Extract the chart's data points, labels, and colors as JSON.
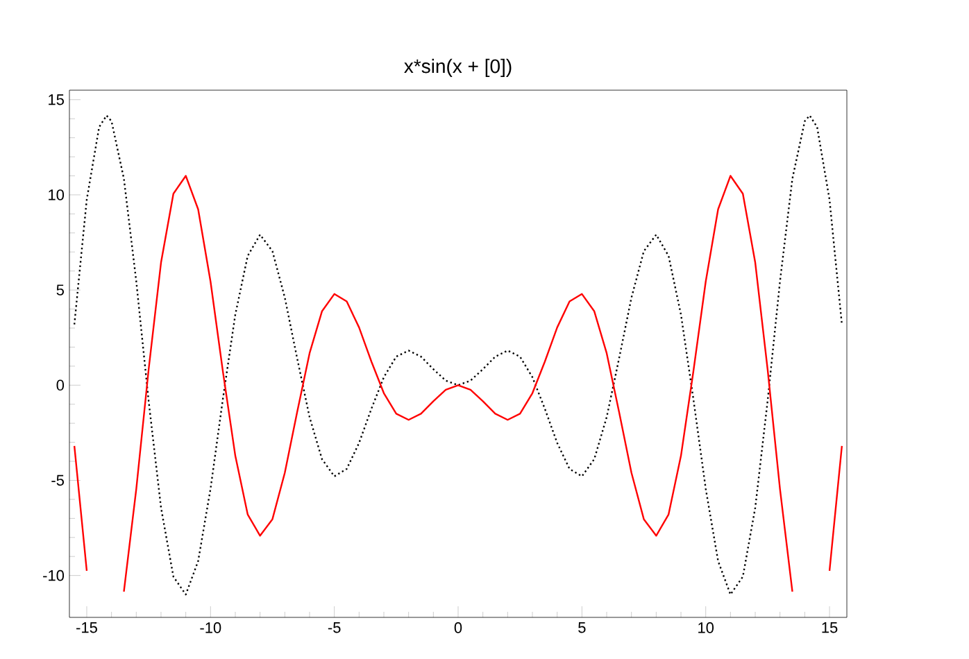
{
  "chart_data": {
    "type": "line",
    "title": "x*sin(x + [0])",
    "x": [
      -15.5,
      -15,
      -14.5,
      -14.2,
      -14,
      -13.5,
      -13,
      -12.5,
      -12,
      -11.5,
      -11,
      -10.5,
      -10,
      -9.5,
      -9,
      -8.5,
      -8,
      -7.5,
      -7,
      -6.5,
      -6,
      -5.5,
      -5,
      -4.5,
      -4,
      -3.5,
      -3,
      -2.5,
      -2,
      -1.5,
      -1,
      -0.5,
      0,
      0.5,
      1,
      1.5,
      2,
      2.5,
      3,
      3.5,
      4,
      4.5,
      5,
      5.5,
      6,
      6.5,
      7,
      7.5,
      8,
      8.5,
      9,
      9.5,
      10,
      10.5,
      11,
      11.5,
      12,
      12.5,
      13,
      13.5,
      14,
      14.2,
      14.5,
      15,
      15.5
    ],
    "series": [
      {
        "color": "#000000",
        "line_style": "dotted",
        "values": [
          3.19,
          9.75,
          13.56,
          14.17,
          13.87,
          10.85,
          5.46,
          -0.83,
          -6.44,
          -10.06,
          -11.0,
          -9.24,
          -5.44,
          -0.71,
          3.71,
          6.79,
          7.91,
          7.04,
          4.6,
          1.4,
          -1.68,
          -3.88,
          -4.79,
          -4.4,
          -3.03,
          -1.23,
          0.42,
          1.5,
          1.82,
          1.5,
          0.84,
          0.24,
          0,
          0.24,
          0.84,
          1.5,
          1.82,
          1.5,
          0.42,
          -1.23,
          -3.03,
          -4.4,
          -4.79,
          -3.88,
          -1.68,
          1.4,
          4.6,
          7.04,
          7.91,
          6.79,
          3.71,
          -0.71,
          -5.44,
          -9.24,
          -11.0,
          -10.06,
          -6.44,
          -0.83,
          5.46,
          10.85,
          13.87,
          14.17,
          13.56,
          9.75,
          3.19
        ]
      },
      {
        "color": "#ff0000",
        "line_style": "solid",
        "values": [
          -3.19,
          -9.75,
          null,
          null,
          null,
          -10.85,
          -5.46,
          0.83,
          6.44,
          10.06,
          11.0,
          9.24,
          5.44,
          0.71,
          -3.71,
          -6.79,
          -7.91,
          -7.04,
          -4.6,
          -1.4,
          1.68,
          3.88,
          4.79,
          4.4,
          3.03,
          1.23,
          -0.42,
          -1.5,
          -1.82,
          -1.5,
          -0.84,
          -0.24,
          0,
          -0.24,
          -0.84,
          -1.5,
          -1.82,
          -1.5,
          -0.42,
          1.23,
          3.03,
          4.4,
          4.79,
          3.88,
          1.68,
          -1.4,
          -4.6,
          -7.04,
          -7.91,
          -6.79,
          -3.71,
          0.71,
          5.44,
          9.24,
          11.0,
          10.06,
          6.44,
          0.83,
          -5.46,
          -10.85,
          null,
          null,
          null,
          -9.75,
          -3.19
        ]
      }
    ],
    "xlim": [
      -15.7,
      15.7
    ],
    "ylim": [
      -12.2,
      15.5
    ],
    "xticks": [
      -15,
      -10,
      -5,
      0,
      5,
      10,
      15
    ],
    "yticks": [
      -10,
      -5,
      0,
      5,
      10,
      15
    ],
    "grid": false
  }
}
